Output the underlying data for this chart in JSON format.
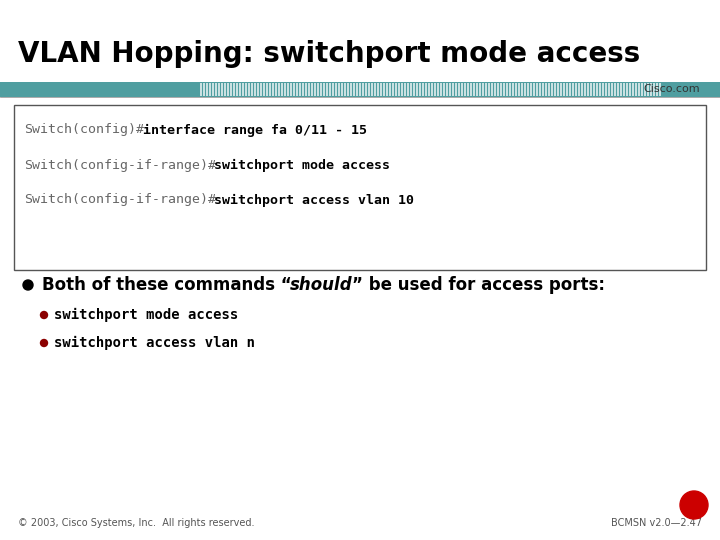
{
  "title": "VLAN Hopping: switchport mode access",
  "title_fontsize": 20,
  "title_color": "#000000",
  "bg_color": "#ffffff",
  "teal_color": "#4f9ea0",
  "cisco_com_text": "Cisco.com",
  "code_lines": [
    [
      "Switch(config)#",
      "interface range fa 0/11 - 15"
    ],
    [
      "Switch(config-if-range)#",
      "switchport mode access"
    ],
    [
      "Switch(config-if-range)#",
      "switchport access vlan 10"
    ]
  ],
  "code_font_size": 9.5,
  "code_prefix_color": "#666666",
  "code_bold_color": "#000000",
  "bullet_text_before": "Both of these commands “",
  "bullet_text_italic": "should",
  "bullet_text_after": "” be used for access ports:",
  "bullet_fontsize": 12,
  "sub_bullets": [
    "switchport mode access",
    "switchport access vlan n"
  ],
  "sub_bullet_fontsize": 10,
  "sub_bullet_color": "#8b0000",
  "footer_left": "© 2003, Cisco Systems, Inc.  All rights reserved.",
  "footer_right": "BCMSN v2.0—2.47",
  "footer_fontsize": 7,
  "red_color": "#cc0000"
}
